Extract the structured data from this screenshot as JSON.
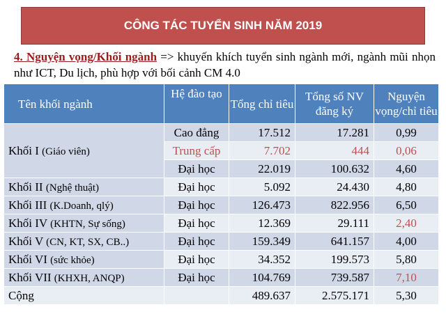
{
  "header": {
    "title": "CÔNG TÁC TUYỂN SINH NĂM 2019"
  },
  "intro": {
    "lead": "4. Nguyện vọng/Khối ngành",
    "text": " => khuyến khích tuyển sinh ngành mới, ngành mũi nhọn như ICT, Du lịch, phù hợp với bối cảnh CM 4.0"
  },
  "table": {
    "header": [
      "Tên khối ngành",
      "Hệ đào tạo",
      "Tổng chỉ tiêu",
      "Tổng số NV đăng ký",
      "Nguyện vọng/chỉ tiêu"
    ],
    "groups": [
      {
        "name": "Khối I",
        "note": "(Giáo viên)",
        "rows": [
          [
            "Cao đẳng",
            "17.512",
            "17.281",
            "0,99"
          ],
          [
            "Trung cấp",
            "7.702",
            "444",
            "0,06"
          ],
          [
            "Đại học",
            "22.019",
            "100.632",
            "4,60"
          ]
        ]
      },
      {
        "name": "Khối II",
        "note": "(Nghệ thuật)",
        "rows": [
          [
            "Đại học",
            "5.092",
            "24.430",
            "4,80"
          ]
        ]
      },
      {
        "name": "Khối III",
        "note": "(K.Doanh, qlý)",
        "rows": [
          [
            "Đại học",
            "126.473",
            "822.956",
            "6,50"
          ]
        ]
      },
      {
        "name": "Khối IV",
        "note": "(KHTN, Sự sống)",
        "rows": [
          [
            "Đại học",
            "12.369",
            "29.111",
            "2,40"
          ]
        ]
      },
      {
        "name": "Khối V",
        "note": "(CN, KT, SX, CB..)",
        "rows": [
          [
            "Đại học",
            "159.349",
            "641.157",
            "4,00"
          ]
        ]
      },
      {
        "name": "Khối VI",
        "note": "(sức khỏe)",
        "rows": [
          [
            "Đại học",
            "34.352",
            "199.573",
            "5,80"
          ]
        ]
      },
      {
        "name": "Khối VII",
        "note": "(KHXH, ANQP)",
        "rows": [
          [
            "Đại học",
            "104.769",
            "739.587",
            "7,10"
          ]
        ]
      }
    ],
    "total": {
      "label": "Cộng",
      "values": [
        "489.637",
        "2.575.171",
        "5,30"
      ]
    }
  }
}
